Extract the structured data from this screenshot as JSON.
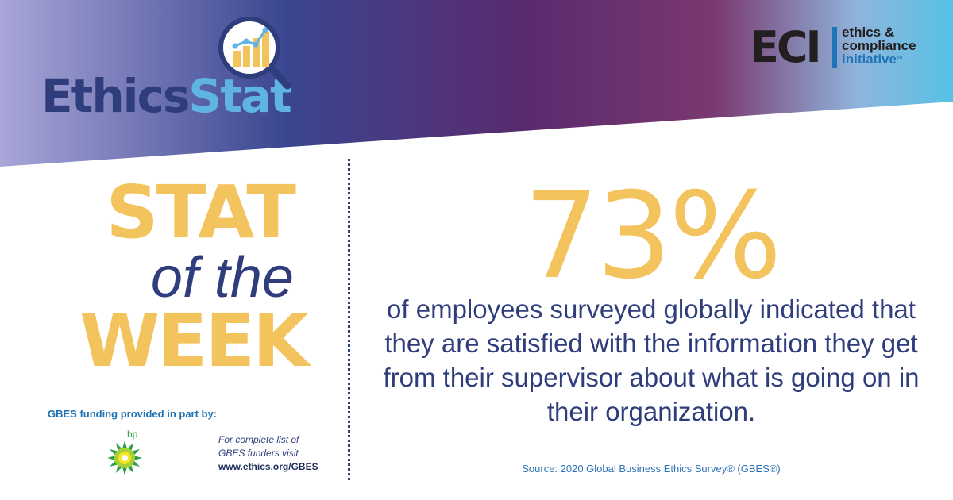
{
  "header": {
    "logo_part1": "Ethics",
    "logo_part2": "Stat",
    "eci_mark": "ECI",
    "eci_line1": "ethics &",
    "eci_line2": "compliance",
    "eci_line3": "initiative",
    "eci_tm": "™"
  },
  "title": {
    "line1": "STAT",
    "line2": "of the",
    "line3": "WEEK"
  },
  "sponsor": {
    "label": "GBES funding provided in part by:",
    "bp_text": "bp",
    "funders_line1": "For complete list of",
    "funders_line2": "GBES funders visit",
    "funders_url": "www.ethics.org/GBES"
  },
  "stat": {
    "value": "73%",
    "description": "of employees surveyed globally indicated that they are satisfied with the information they get from their supervisor about what is going on in their organization.",
    "source": "Source: 2020 Global Business Ethics Survey® (GBES®)"
  },
  "colors": {
    "gold": "#f3c35d",
    "navy": "#2f3d7c",
    "light_blue": "#5fb4e3",
    "eci_blue": "#1e74b8"
  },
  "icons": {
    "magnifier": "magnifier-chart-icon",
    "bp_logo": "bp-helios-icon"
  }
}
